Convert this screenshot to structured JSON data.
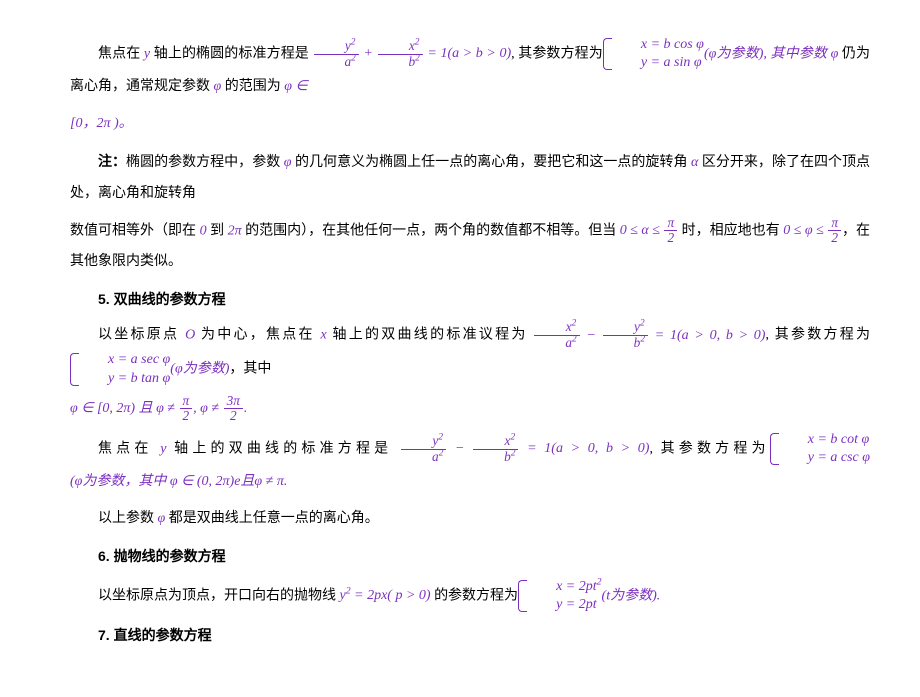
{
  "colors": {
    "math": "#7b2fbf",
    "text": "#000000",
    "bg": "#ffffff"
  },
  "fontsize_pt": 14,
  "line_height": 2.2,
  "p1": {
    "t1": "焦点在 ",
    "y": "y",
    "t2": " 轴上的椭圆的标准方程是 ",
    "eq1_num1": "y",
    "eq1_den1": "a",
    "eq1_num2": "x",
    "eq1_den2": "b",
    "eq1_rhs": " = 1(a > b > 0)",
    "t3": ", 其参数方程为",
    "sys_r1": "x = b cos φ",
    "sys_r2": "y = a sin φ",
    "t4": "(φ为参数), 其中参数 ",
    "phi": "φ",
    "t5": " 仍为离心角，通常规定参数 ",
    "t6": " 的范围为 ",
    "range": "φ ∈"
  },
  "p1b": "[0，2π )。",
  "p2": {
    "t1": "注：",
    "t2": "椭圆的参数方程中，参数 ",
    "phi": "φ",
    "t3": " 的几何意义为椭圆上任一点的离心角，要把它和这一点的旋转角 ",
    "alpha": "α",
    "t4": " 区分开来，除了在四个顶点处，离心角和旋转角"
  },
  "p3": {
    "t1": "数值可相等外（即在 ",
    "r0": "0",
    "t1b": " 到 ",
    "r1": "2π",
    "t2": " 的范围内），在其他任何一点，两个角的数值都不相等。但当 ",
    "ineq1_l": "0 ≤ α ≤ ",
    "frac_num": "π",
    "frac_den": "2",
    "t3": " 时，相应地也有 ",
    "ineq2_l": "0 ≤ φ ≤ ",
    "t4": "，在其他象限内类似。"
  },
  "h5": "5.  双曲线的参数方程",
  "p4": {
    "t1": "以坐标原点 ",
    "O": "O",
    "t2": " 为中心，焦点在 ",
    "x": "x",
    "t3": " 轴上的双曲线的标准议程为 ",
    "eq_num1": "x",
    "eq_den1": "a",
    "eq_num2": "y",
    "eq_den2": "b",
    "eq_rhs": " = 1(a > 0, b > 0)",
    "t4": ", 其参数方程为",
    "sys_r1": "x = a sec φ",
    "sys_r2": "y = b tan φ",
    "t5": "(φ为参数)",
    "t6": "，其中"
  },
  "p5": {
    "r1": "φ ∈ [0, 2π) 且 φ ≠ ",
    "n1": "π",
    "d1": "2",
    "r2": ", φ ≠ ",
    "n2": "3π",
    "d2": "2",
    "dot": "."
  },
  "p6": {
    "t1": "焦点在 ",
    "y": "y",
    "t2": " 轴上的双曲线的标准方程是 ",
    "eq_num1": "y",
    "eq_den1": "a",
    "eq_num2": "x",
    "eq_den2": "b",
    "eq_rhs": " = 1(a > 0, b > 0)",
    "t3": ", 其参数方程为",
    "sys_r1": "x = b cot φ",
    "sys_r2": "y = a csc φ",
    "t4": "(φ为参数，其中 ",
    "cond": "φ ∈ (0, 2π)e且φ ≠ π.",
    "t5": ""
  },
  "p7": {
    "t1": "以上参数 ",
    "phi": "φ",
    "t2": " 都是双曲线上任意一点的离心角。"
  },
  "h6": "6.  抛物线的参数方程",
  "p8": {
    "t1": "以坐标原点为顶点，开口向右的抛物线 ",
    "eq1": "y",
    "eq2": " = 2px( p > 0)",
    "t2": " 的参数方程为",
    "sys_r1_a": "x = 2pt",
    "sys_r2": "y = 2pt",
    "t3": "(t为参数)."
  },
  "h7": "7.  直线的参数方程"
}
